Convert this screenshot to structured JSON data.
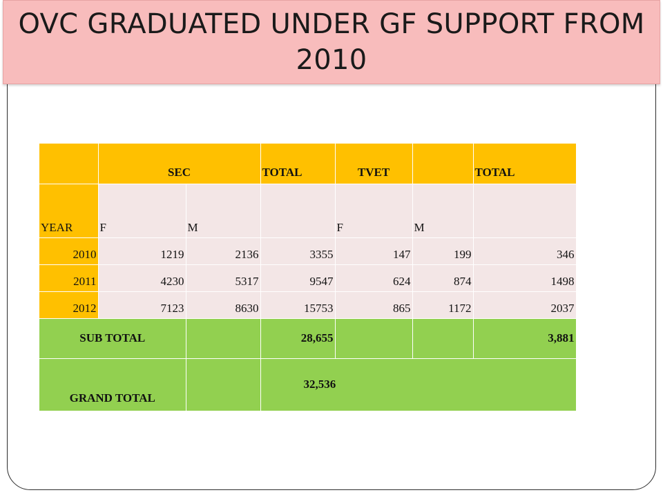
{
  "title": "OVC GRADUATED UNDER GF SUPPORT FROM 2010",
  "colors": {
    "title_bg": "#f8bcbc",
    "header_bg": "#ffc000",
    "cell_bg": "#f3e6e6",
    "total_bg": "#92d050"
  },
  "table": {
    "header": [
      "",
      "SEC",
      "TOTAL",
      "TVET",
      "",
      "TOTAL"
    ],
    "subheader": [
      "YEAR",
      "F",
      "M",
      "",
      "F",
      "M",
      ""
    ],
    "rows": [
      {
        "year": "2010",
        "sec_f": "1219",
        "sec_m": "2136",
        "sec_total": "3355",
        "tvet_f": "147",
        "tvet_m": "199",
        "tvet_total": "346"
      },
      {
        "year": "2011",
        "sec_f": "4230",
        "sec_m": "5317",
        "sec_total": "9547",
        "tvet_f": "624",
        "tvet_m": "874",
        "tvet_total": "1498"
      },
      {
        "year": "2012",
        "sec_f": "7123",
        "sec_m": "8630",
        "sec_total": "15753",
        "tvet_f": "865",
        "tvet_m": "1172",
        "tvet_total": "2037"
      }
    ],
    "subtotal": {
      "label": "SUB TOTAL",
      "sec_total": "28,655",
      "tvet_total": "3,881"
    },
    "grand_total": {
      "label": "GRAND TOTAL",
      "value": "32,536"
    }
  }
}
